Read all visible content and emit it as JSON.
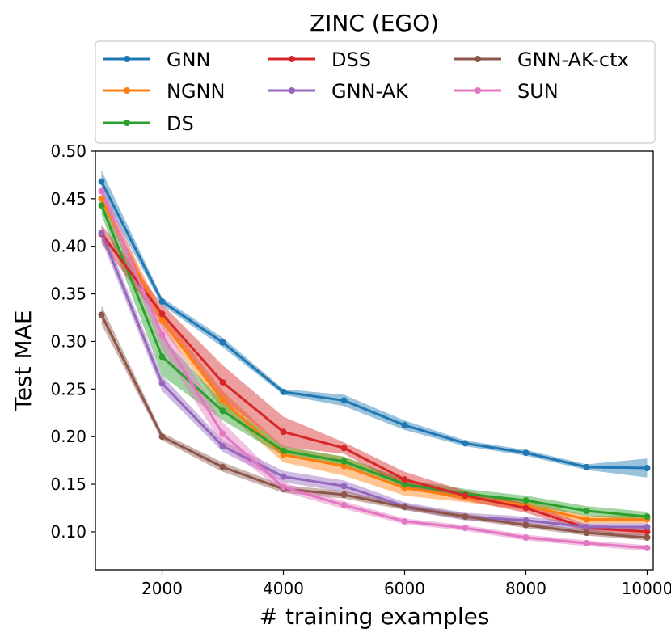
{
  "chart_data": {
    "type": "line",
    "title": "ZINC (EGO)",
    "xlabel": "# training examples",
    "ylabel": "Test MAE",
    "xlim": [
      900,
      10100
    ],
    "ylim": [
      0.06,
      0.5
    ],
    "xticks": [
      2000,
      4000,
      6000,
      8000,
      10000
    ],
    "yticks": [
      0.1,
      0.15,
      0.2,
      0.25,
      0.3,
      0.35,
      0.4,
      0.45,
      0.5
    ],
    "legend_placement": "top",
    "x": [
      1000,
      2000,
      3000,
      4000,
      5000,
      6000,
      7000,
      8000,
      9000,
      10000
    ],
    "series": [
      {
        "name": "GNN",
        "color": "#1f77b4",
        "values": [
          0.468,
          0.342,
          0.299,
          0.247,
          0.238,
          0.212,
          0.193,
          0.183,
          0.168,
          0.167
        ],
        "band": [
          0.012,
          0.004,
          0.005,
          0.003,
          0.006,
          0.005,
          0.003,
          0.003,
          0.003,
          0.01
        ]
      },
      {
        "name": "NGNN",
        "color": "#ff7f0e",
        "values": [
          0.45,
          0.322,
          0.238,
          0.181,
          0.169,
          0.146,
          0.136,
          0.128,
          0.113,
          0.113
        ],
        "band": [
          0.01,
          0.008,
          0.01,
          0.008,
          0.01,
          0.008,
          0.005,
          0.005,
          0.004,
          0.004
        ]
      },
      {
        "name": "DS",
        "color": "#2ca02c",
        "values": [
          0.443,
          0.284,
          0.227,
          0.185,
          0.174,
          0.15,
          0.14,
          0.133,
          0.122,
          0.116
        ],
        "band": [
          0.01,
          0.02,
          0.01,
          0.005,
          0.005,
          0.005,
          0.005,
          0.005,
          0.005,
          0.005
        ]
      },
      {
        "name": "DSS",
        "color": "#d62728",
        "values": [
          0.413,
          0.329,
          0.257,
          0.205,
          0.188,
          0.155,
          0.138,
          0.125,
          0.104,
          0.1
        ],
        "band": [
          0.01,
          0.01,
          0.018,
          0.016,
          0.006,
          0.008,
          0.005,
          0.005,
          0.004,
          0.004
        ]
      },
      {
        "name": "GNN-AK",
        "color": "#9467bd",
        "values": [
          0.414,
          0.256,
          0.19,
          0.158,
          0.148,
          0.127,
          0.116,
          0.112,
          0.105,
          0.105
        ],
        "band": [
          0.008,
          0.008,
          0.006,
          0.006,
          0.006,
          0.004,
          0.004,
          0.004,
          0.004,
          0.004
        ]
      },
      {
        "name": "GNN-AK-ctx",
        "color": "#8c564b",
        "values": [
          0.328,
          0.2,
          0.168,
          0.145,
          0.139,
          0.126,
          0.116,
          0.107,
          0.099,
          0.094
        ],
        "band": [
          0.01,
          0.004,
          0.005,
          0.004,
          0.004,
          0.003,
          0.003,
          0.003,
          0.003,
          0.003
        ]
      },
      {
        "name": "SUN",
        "color": "#e377c2",
        "values": [
          0.458,
          0.307,
          0.203,
          0.147,
          0.128,
          0.111,
          0.104,
          0.094,
          0.088,
          0.083
        ],
        "band": [
          0.008,
          0.015,
          0.012,
          0.005,
          0.004,
          0.003,
          0.003,
          0.003,
          0.003,
          0.003
        ]
      }
    ]
  }
}
